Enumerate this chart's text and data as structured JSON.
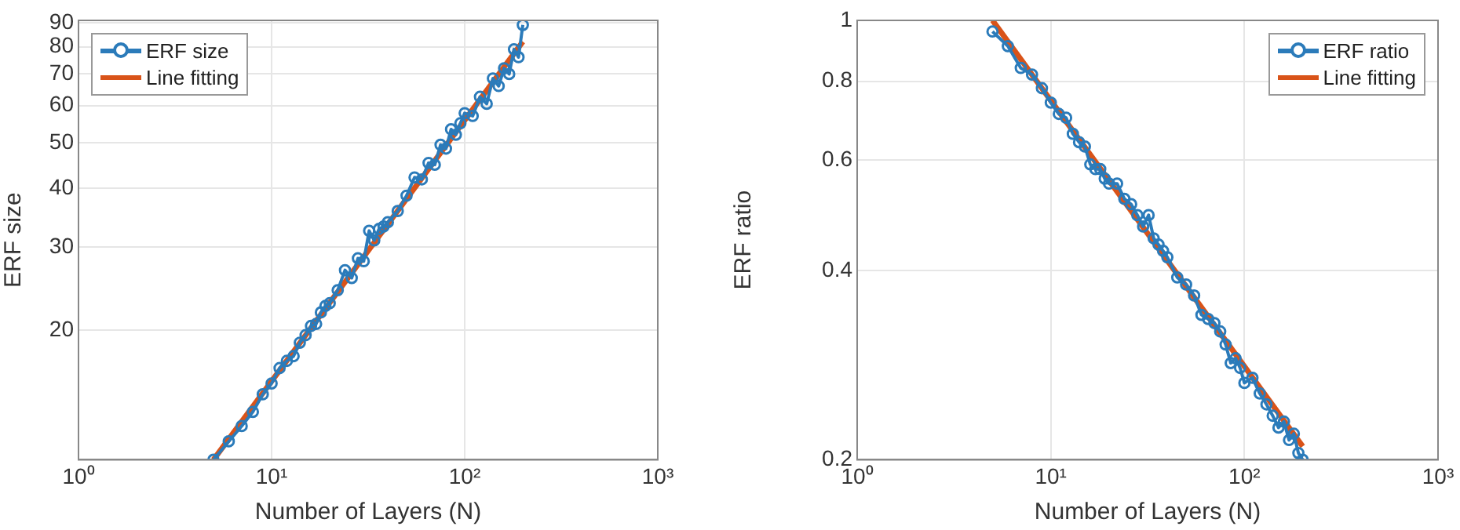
{
  "chart_data": [
    {
      "type": "line",
      "xlabel": "Number of Layers (N)",
      "ylabel": "ERF size",
      "log": "xy",
      "grid": true,
      "legend": "top left",
      "xlim": [
        1,
        1000
      ],
      "ylim": [
        10.6,
        91
      ],
      "xticks": [
        {
          "value": 1,
          "label": "10⁰"
        },
        {
          "value": 10,
          "label": "10¹"
        },
        {
          "value": 100,
          "label": "10²"
        },
        {
          "value": 1000,
          "label": "10³"
        }
      ],
      "yticks": [
        20,
        30,
        40,
        50,
        60,
        70,
        80,
        90
      ],
      "series": [
        {
          "name": "ERF size",
          "color": "#2b7bba",
          "marker": "circle",
          "x": [
            5,
            6,
            7,
            8,
            9,
            10,
            11,
            12,
            13,
            14,
            15,
            16,
            17,
            18,
            19,
            20,
            22,
            24,
            26,
            28,
            30,
            32,
            34,
            36,
            38,
            40,
            45,
            50,
            55,
            60,
            65,
            70,
            75,
            80,
            85,
            90,
            95,
            100,
            110,
            120,
            130,
            140,
            150,
            160,
            170,
            180,
            190,
            200
          ],
          "values": [
            10.6,
            11.6,
            12.5,
            13.4,
            14.6,
            15.4,
            16.6,
            17.2,
            17.6,
            18.8,
            19.5,
            20.4,
            20.6,
            21.8,
            22.5,
            22.8,
            24.3,
            26.8,
            25.8,
            28.4,
            28.0,
            32.5,
            31.0,
            32.8,
            33.2,
            33.9,
            35.8,
            38.6,
            42.2,
            41.8,
            45.3,
            44.9,
            49.5,
            48.6,
            53.4,
            52.0,
            55.0,
            57.8,
            57.0,
            62.6,
            60.5,
            68.5,
            66.0,
            72.0,
            70.0,
            79.0,
            76.0,
            89.0
          ]
        },
        {
          "name": "Line fitting",
          "color": "#d95319",
          "marker": "none",
          "x": [
            5,
            200
          ],
          "values": [
            10.6,
            82
          ]
        }
      ]
    },
    {
      "type": "line",
      "xlabel": "Number of Layers (N)",
      "ylabel": "ERF ratio",
      "log": "xy",
      "grid": true,
      "legend": "top right",
      "xlim": [
        1,
        1000
      ],
      "ylim": [
        0.2,
        1
      ],
      "xticks": [
        {
          "value": 1,
          "label": "10⁰"
        },
        {
          "value": 10,
          "label": "10¹"
        },
        {
          "value": 100,
          "label": "10²"
        },
        {
          "value": 1000,
          "label": "10³"
        }
      ],
      "yticks": [
        0.2,
        0.4,
        0.6,
        0.8,
        1
      ],
      "series": [
        {
          "name": "ERF ratio",
          "color": "#2b7bba",
          "marker": "circle",
          "x": [
            5,
            6,
            7,
            8,
            9,
            10,
            11,
            12,
            13,
            14,
            15,
            16,
            17,
            18,
            19,
            20,
            22,
            24,
            26,
            28,
            30,
            32,
            34,
            36,
            38,
            40,
            45,
            50,
            55,
            60,
            65,
            70,
            75,
            80,
            85,
            90,
            95,
            100,
            110,
            120,
            130,
            140,
            150,
            160,
            170,
            180,
            190,
            200
          ],
          "values": [
            0.96,
            0.91,
            0.84,
            0.82,
            0.78,
            0.74,
            0.71,
            0.7,
            0.66,
            0.64,
            0.63,
            0.59,
            0.58,
            0.58,
            0.56,
            0.55,
            0.55,
            0.52,
            0.51,
            0.49,
            0.47,
            0.49,
            0.45,
            0.44,
            0.43,
            0.42,
            0.39,
            0.38,
            0.365,
            0.34,
            0.335,
            0.33,
            0.32,
            0.305,
            0.285,
            0.29,
            0.28,
            0.265,
            0.27,
            0.255,
            0.245,
            0.235,
            0.225,
            0.23,
            0.215,
            0.22,
            0.205,
            0.2
          ]
        },
        {
          "name": "Line fitting",
          "color": "#d95319",
          "marker": "none",
          "x": [
            5,
            200
          ],
          "values": [
            1.0,
            0.21
          ]
        }
      ]
    }
  ]
}
